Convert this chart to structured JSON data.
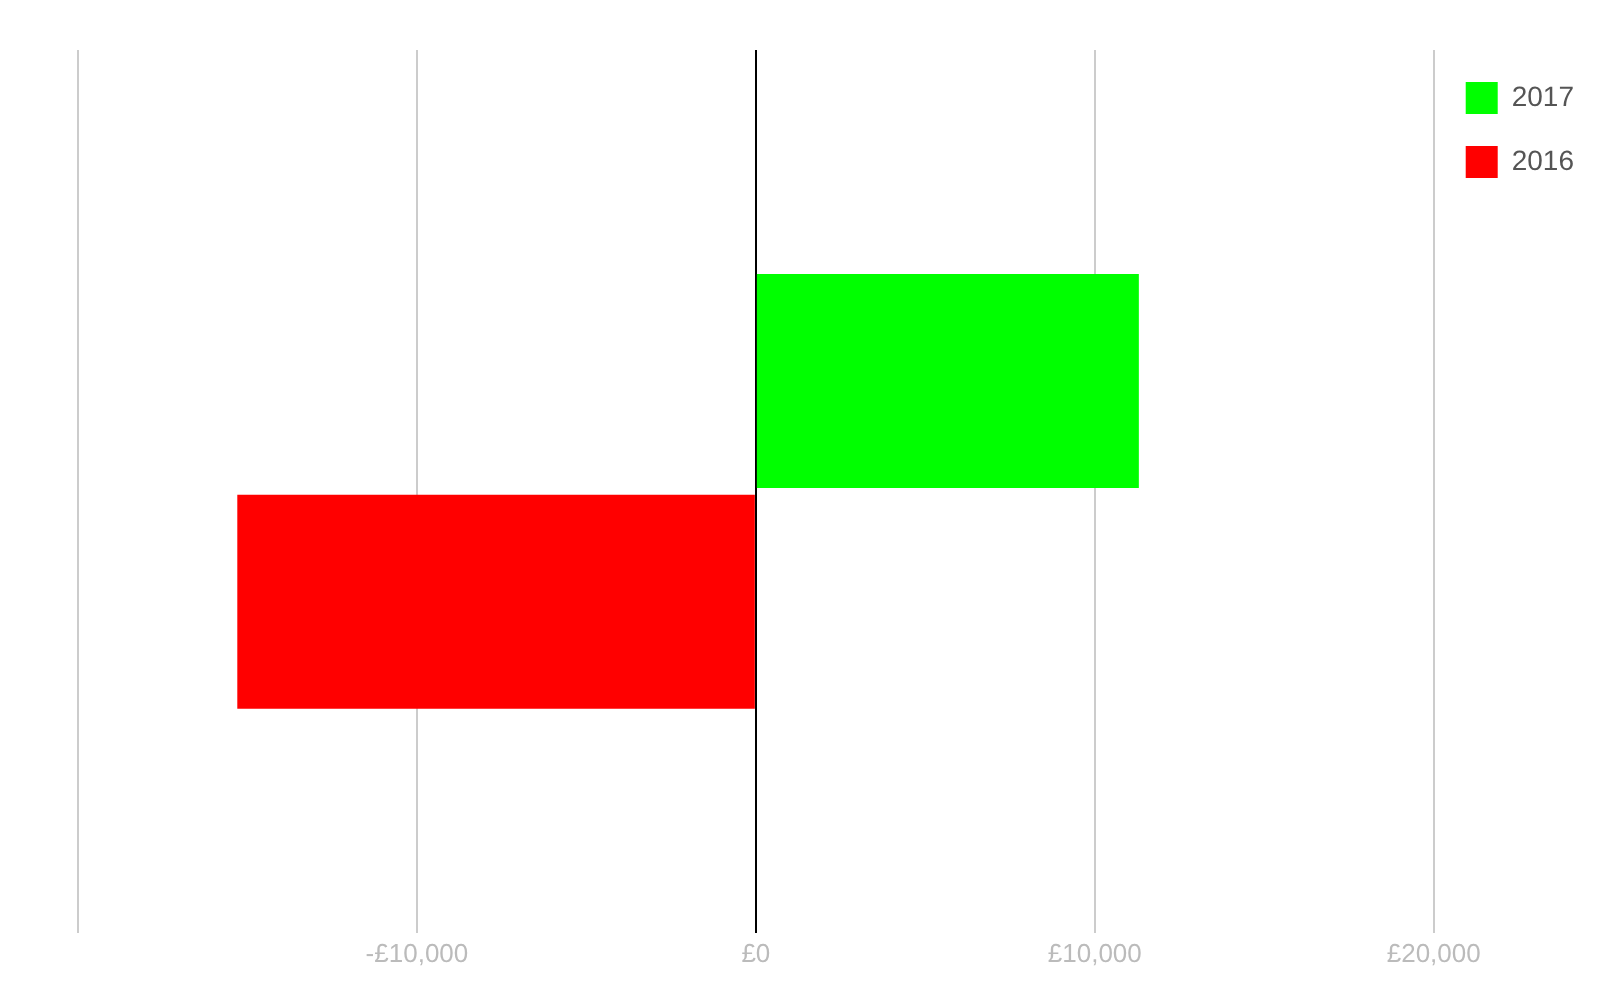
{
  "chart_data": {
    "type": "bar",
    "orientation": "horizontal",
    "categories": [
      null
    ],
    "series": [
      {
        "name": "2017",
        "color": "#00ff00",
        "values": [
          11300
        ]
      },
      {
        "name": "2016",
        "color": "#ff0000",
        "values": [
          -15300
        ]
      }
    ],
    "xlim": [
      -20000,
      20000
    ],
    "xticks": [
      {
        "value": -20000,
        "label": null
      },
      {
        "value": -10000,
        "label": "-£10,000"
      },
      {
        "value": 0,
        "label": "£0"
      },
      {
        "value": 10000,
        "label": "£10,000"
      },
      {
        "value": 20000,
        "label": "£20,000"
      }
    ],
    "grid": "x",
    "legend": "top right"
  }
}
